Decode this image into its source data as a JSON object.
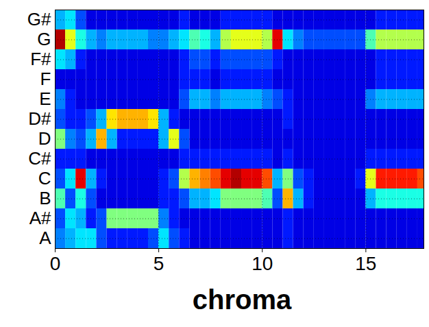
{
  "chart_data": {
    "type": "heatmap",
    "xlabel": "chroma",
    "x": [
      0,
      0.5,
      1,
      1.5,
      2,
      2.5,
      3,
      3.5,
      4,
      4.5,
      5,
      5.5,
      6,
      6.5,
      7,
      7.5,
      8,
      8.5,
      9,
      9.5,
      10,
      10.5,
      11,
      11.5,
      12,
      12.5,
      13,
      13.5,
      14,
      14.5,
      15,
      15.5,
      16,
      16.5,
      17,
      17.5,
      18
    ],
    "xlim": [
      0,
      17.8
    ],
    "xticks": [
      0,
      5,
      10,
      15
    ],
    "categories": [
      "A",
      "A#",
      "B",
      "C",
      "C#",
      "D",
      "D#",
      "E",
      "F",
      "F#",
      "G",
      "G#"
    ],
    "grid": true,
    "zlim": [
      0,
      1
    ],
    "values": [
      [
        0.25,
        0.3,
        0.35,
        0.35,
        0.2,
        0.15,
        0.15,
        0.15,
        0.15,
        0.2,
        0.35,
        0.2,
        0.15,
        0.1,
        0.1,
        0.1,
        0.1,
        0.1,
        0.1,
        0.1,
        0.1,
        0.1,
        0.15,
        0.1,
        0.1,
        0.1,
        0.1,
        0.1,
        0.1,
        0.1,
        0.1,
        0.1,
        0.1,
        0.1,
        0.1,
        0.1
      ],
      [
        0.2,
        0.35,
        0.3,
        0.15,
        0.2,
        0.5,
        0.5,
        0.5,
        0.5,
        0.5,
        0.25,
        0.15,
        0.1,
        0.1,
        0.1,
        0.1,
        0.1,
        0.1,
        0.1,
        0.1,
        0.1,
        0.1,
        0.15,
        0.1,
        0.1,
        0.1,
        0.1,
        0.1,
        0.1,
        0.1,
        0.1,
        0.1,
        0.1,
        0.1,
        0.1,
        0.1
      ],
      [
        0.45,
        0.2,
        0.4,
        0.2,
        0.1,
        0.1,
        0.1,
        0.1,
        0.1,
        0.1,
        0.15,
        0.15,
        0.2,
        0.3,
        0.3,
        0.35,
        0.5,
        0.5,
        0.5,
        0.5,
        0.45,
        0.2,
        0.7,
        0.3,
        0.15,
        0.1,
        0.1,
        0.1,
        0.1,
        0.1,
        0.3,
        0.4,
        0.4,
        0.4,
        0.4,
        0.4
      ],
      [
        0.2,
        0.35,
        0.9,
        0.3,
        0.15,
        0.1,
        0.1,
        0.1,
        0.1,
        0.1,
        0.15,
        0.2,
        0.55,
        0.7,
        0.75,
        0.8,
        0.9,
        0.95,
        0.9,
        0.9,
        0.8,
        0.3,
        0.5,
        0.2,
        0.15,
        0.1,
        0.1,
        0.1,
        0.1,
        0.15,
        0.6,
        0.85,
        0.85,
        0.85,
        0.85,
        0.8
      ],
      [
        0.15,
        0.15,
        0.15,
        0.1,
        0.1,
        0.1,
        0.1,
        0.1,
        0.1,
        0.1,
        0.1,
        0.1,
        0.15,
        0.15,
        0.15,
        0.15,
        0.15,
        0.15,
        0.15,
        0.15,
        0.15,
        0.1,
        0.15,
        0.1,
        0.1,
        0.1,
        0.1,
        0.1,
        0.1,
        0.1,
        0.15,
        0.15,
        0.15,
        0.15,
        0.15,
        0.15
      ],
      [
        0.5,
        0.25,
        0.2,
        0.3,
        0.7,
        0.3,
        0.15,
        0.15,
        0.15,
        0.15,
        0.3,
        0.6,
        0.2,
        0.1,
        0.1,
        0.1,
        0.1,
        0.1,
        0.1,
        0.1,
        0.1,
        0.1,
        0.1,
        0.1,
        0.1,
        0.1,
        0.1,
        0.1,
        0.1,
        0.1,
        0.1,
        0.1,
        0.1,
        0.1,
        0.1,
        0.1
      ],
      [
        0.2,
        0.15,
        0.15,
        0.2,
        0.3,
        0.65,
        0.7,
        0.7,
        0.7,
        0.65,
        0.3,
        0.15,
        0.1,
        0.1,
        0.1,
        0.1,
        0.1,
        0.1,
        0.1,
        0.1,
        0.1,
        0.1,
        0.15,
        0.1,
        0.1,
        0.1,
        0.1,
        0.1,
        0.1,
        0.1,
        0.1,
        0.1,
        0.1,
        0.1,
        0.1,
        0.1
      ],
      [
        0.25,
        0.15,
        0.1,
        0.1,
        0.1,
        0.1,
        0.1,
        0.1,
        0.1,
        0.1,
        0.1,
        0.1,
        0.2,
        0.3,
        0.3,
        0.25,
        0.3,
        0.3,
        0.3,
        0.3,
        0.25,
        0.2,
        0.15,
        0.1,
        0.1,
        0.1,
        0.1,
        0.1,
        0.1,
        0.1,
        0.25,
        0.3,
        0.3,
        0.3,
        0.3,
        0.3
      ],
      [
        0.1,
        0.1,
        0.1,
        0.1,
        0.1,
        0.1,
        0.1,
        0.1,
        0.1,
        0.1,
        0.1,
        0.1,
        0.15,
        0.15,
        0.15,
        0.1,
        0.15,
        0.15,
        0.15,
        0.15,
        0.15,
        0.1,
        0.1,
        0.1,
        0.1,
        0.1,
        0.1,
        0.1,
        0.1,
        0.1,
        0.1,
        0.15,
        0.15,
        0.15,
        0.15,
        0.15
      ],
      [
        0.35,
        0.3,
        0.15,
        0.1,
        0.1,
        0.1,
        0.1,
        0.1,
        0.1,
        0.1,
        0.1,
        0.1,
        0.15,
        0.2,
        0.2,
        0.15,
        0.2,
        0.2,
        0.2,
        0.2,
        0.2,
        0.15,
        0.1,
        0.1,
        0.1,
        0.1,
        0.1,
        0.1,
        0.1,
        0.1,
        0.1,
        0.15,
        0.15,
        0.15,
        0.15,
        0.15
      ],
      [
        0.95,
        0.6,
        0.4,
        0.3,
        0.25,
        0.3,
        0.3,
        0.3,
        0.3,
        0.25,
        0.25,
        0.3,
        0.35,
        0.45,
        0.4,
        0.3,
        0.55,
        0.6,
        0.6,
        0.6,
        0.55,
        0.9,
        0.35,
        0.25,
        0.2,
        0.2,
        0.2,
        0.2,
        0.2,
        0.2,
        0.45,
        0.55,
        0.55,
        0.55,
        0.55,
        0.55
      ],
      [
        0.3,
        0.35,
        0.2,
        0.1,
        0.1,
        0.1,
        0.1,
        0.1,
        0.1,
        0.1,
        0.1,
        0.1,
        0.15,
        0.1,
        0.1,
        0.1,
        0.15,
        0.15,
        0.15,
        0.15,
        0.15,
        0.1,
        0.1,
        0.1,
        0.1,
        0.1,
        0.1,
        0.1,
        0.1,
        0.1,
        0.1,
        0.15,
        0.15,
        0.15,
        0.15,
        0.15
      ]
    ]
  }
}
